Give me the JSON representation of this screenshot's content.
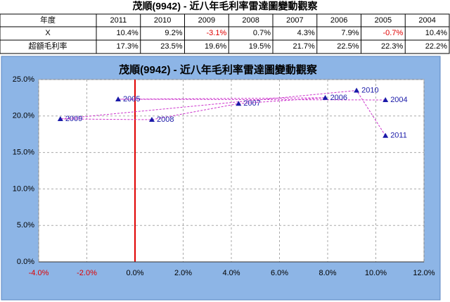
{
  "chart_data": {
    "type": "scatter",
    "table_title": "茂順(9942) - 近八年毛利率雷達圖變動觀察",
    "title": "茂順(9942) - 近八年毛利率雷達圖變動觀察",
    "table_header": "年度",
    "categories": [
      "2011",
      "2010",
      "2009",
      "2008",
      "2007",
      "2006",
      "2005",
      "2004"
    ],
    "series": [
      {
        "name": "X",
        "values": [
          10.4,
          9.2,
          -3.1,
          0.7,
          4.3,
          7.9,
          -0.7,
          10.4
        ],
        "value_labels": [
          "10.4%",
          "9.2%",
          "-3.1%",
          "0.7%",
          "4.3%",
          "7.9%",
          "-0.7%",
          "10.4%"
        ]
      },
      {
        "name": "超額毛利率",
        "values": [
          17.3,
          23.5,
          19.6,
          19.5,
          21.7,
          22.5,
          22.3,
          22.2
        ],
        "value_labels": [
          "17.3%",
          "23.5%",
          "19.6%",
          "19.5%",
          "21.7%",
          "22.5%",
          "22.3%",
          "22.2%"
        ]
      }
    ],
    "marker_color": "#1a1aa8",
    "line_color": "#cc33cc",
    "zero_line_color": "#e00000",
    "negative_color": "#e00000",
    "grid": true,
    "xlim": [
      -4,
      12
    ],
    "xticks": [
      {
        "value": -4,
        "label": "-4.0%"
      },
      {
        "value": -2,
        "label": "-2.0%"
      },
      {
        "value": 0,
        "label": "0.0%"
      },
      {
        "value": 2,
        "label": "2.0%"
      },
      {
        "value": 4,
        "label": "4.0%"
      },
      {
        "value": 6,
        "label": "6.0%"
      },
      {
        "value": 8,
        "label": "8.0%"
      },
      {
        "value": 10,
        "label": "10.0%"
      },
      {
        "value": 12,
        "label": "12.0%"
      }
    ],
    "ylim": [
      0,
      25
    ],
    "yticks": [
      {
        "value": 0,
        "label": "0.0%"
      },
      {
        "value": 5,
        "label": "5.0%"
      },
      {
        "value": 10,
        "label": "10.0%"
      },
      {
        "value": 15,
        "label": "15.0%"
      },
      {
        "value": 20,
        "label": "20.0%"
      },
      {
        "value": 25,
        "label": "25.0%"
      }
    ]
  }
}
